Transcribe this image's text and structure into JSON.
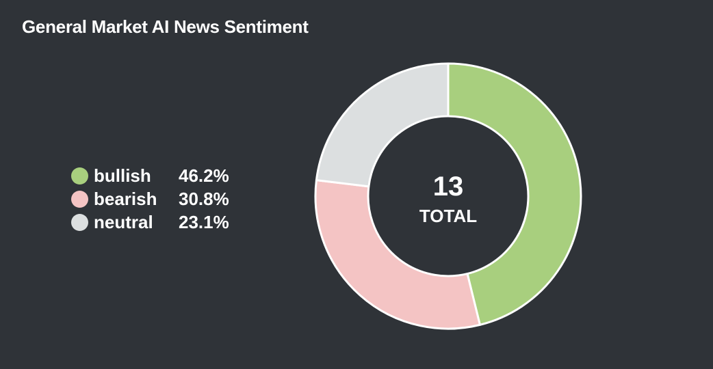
{
  "title": "General Market AI News Sentiment",
  "chart_data": {
    "type": "pie",
    "title": "General Market AI News Sentiment",
    "categories": [
      "bullish",
      "bearish",
      "neutral"
    ],
    "values": [
      46.2,
      30.8,
      23.1
    ],
    "value_labels": [
      "46.2%",
      "30.8%",
      "23.1%"
    ],
    "colors": [
      "#a8cf7e",
      "#f4c4c4",
      "#dcdfe0"
    ],
    "legend_placement": "left",
    "center": {
      "count": "13",
      "label": "TOTAL"
    }
  }
}
